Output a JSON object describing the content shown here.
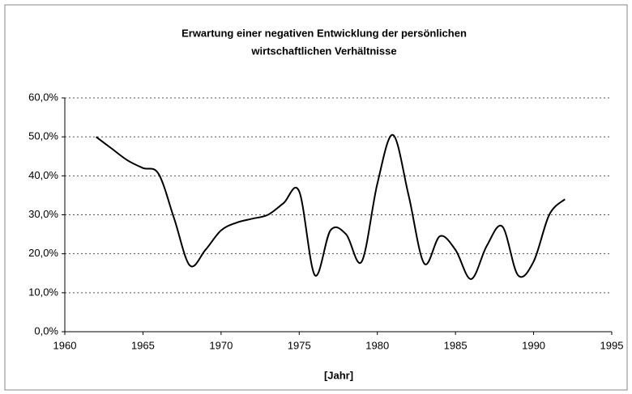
{
  "chart_data": {
    "type": "line",
    "title": [
      "Erwartung einer negativen Entwicklung der persönlichen",
      "wirtschaftlichen Verhältnisse"
    ],
    "x_label": "[Jahr]",
    "x": [
      1962,
      1963,
      1964,
      1965,
      1966,
      1967,
      1968,
      1969,
      1970,
      1971,
      1972,
      1973,
      1974,
      1975,
      1976,
      1977,
      1978,
      1979,
      1980,
      1981,
      1982,
      1983,
      1984,
      1985,
      1986,
      1987,
      1988,
      1989,
      1990,
      1991,
      1992
    ],
    "series": [
      {
        "color": "#000000",
        "values": [
          50,
          47,
          44,
          42,
          40.5,
          29,
          17,
          21,
          26,
          28,
          29,
          30,
          33,
          36,
          14.5,
          26,
          25,
          18,
          38,
          50.5,
          35,
          17.5,
          24.5,
          21,
          13.5,
          22,
          27,
          14.5,
          18,
          30,
          34
        ]
      }
    ],
    "xlim": [
      1960,
      1995
    ],
    "xticks": [
      1960,
      1965,
      1970,
      1975,
      1980,
      1985,
      1990,
      1995
    ],
    "ylim": [
      0,
      60
    ],
    "yticks": [
      {
        "value": 0,
        "label": "0,0%"
      },
      {
        "value": 10,
        "label": "10,0%"
      },
      {
        "value": 20,
        "label": "20,0%"
      },
      {
        "value": 30,
        "label": "30,0%"
      },
      {
        "value": 40,
        "label": "40,0%"
      },
      {
        "value": 50,
        "label": "50,0%"
      },
      {
        "value": 60,
        "label": "60,0%"
      }
    ],
    "grid": true
  }
}
